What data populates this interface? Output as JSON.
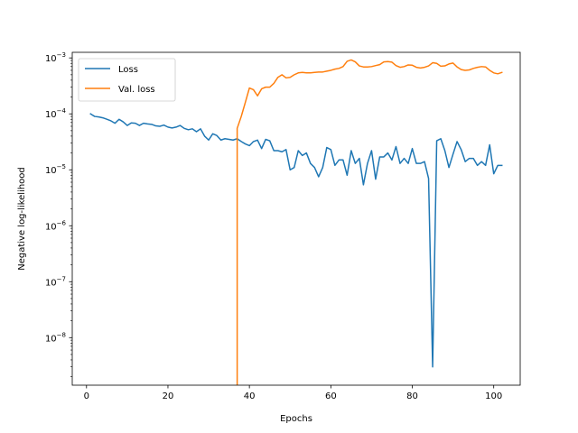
{
  "chart_data": {
    "type": "line",
    "title": "",
    "xlabel": "Epochs",
    "ylabel": "Negative log-likelihood",
    "xlim": [
      -3.5,
      106.5
    ],
    "ylim_log10": [
      -8.85,
      -2.9
    ],
    "yscale": "log",
    "grid": false,
    "legend_position": "top-left",
    "x_ticks": [
      0,
      20,
      40,
      60,
      80,
      100
    ],
    "x_tick_labels": [
      "0",
      "20",
      "40",
      "60",
      "80",
      "100"
    ],
    "y_ticks_log10": [
      -8,
      -7,
      -6,
      -5,
      -4,
      -3
    ],
    "y_tick_labels": [
      {
        "base": "10",
        "exp": "−8"
      },
      {
        "base": "10",
        "exp": "−7"
      },
      {
        "base": "10",
        "exp": "−6"
      },
      {
        "base": "10",
        "exp": "−5"
      },
      {
        "base": "10",
        "exp": "−4"
      },
      {
        "base": "10",
        "exp": "−3"
      }
    ],
    "series": [
      {
        "name": "Loss",
        "color": "#1f77b4",
        "x": [
          1,
          2,
          3,
          4,
          5,
          6,
          7,
          8,
          9,
          10,
          11,
          12,
          13,
          14,
          15,
          16,
          17,
          18,
          19,
          20,
          21,
          22,
          23,
          24,
          25,
          26,
          27,
          28,
          29,
          30,
          31,
          32,
          33,
          34,
          35,
          36,
          37,
          38,
          39,
          40,
          41,
          42,
          43,
          44,
          45,
          46,
          47,
          48,
          49,
          50,
          51,
          52,
          53,
          54,
          55,
          56,
          57,
          58,
          59,
          60,
          61,
          62,
          63,
          64,
          65,
          66,
          67,
          68,
          69,
          70,
          71,
          72,
          73,
          74,
          75,
          76,
          77,
          78,
          79,
          80,
          81,
          82,
          83,
          84,
          85,
          86,
          87,
          88,
          89,
          90,
          91,
          92,
          93,
          94,
          95,
          96,
          97,
          98,
          99,
          100,
          101,
          102
        ],
        "y": [
          0.0001,
          9e-05,
          8.8e-05,
          8.5e-05,
          8e-05,
          7.5e-05,
          6.8e-05,
          8e-05,
          7.2e-05,
          6.2e-05,
          6.9e-05,
          6.8e-05,
          6.2e-05,
          6.8e-05,
          6.6e-05,
          6.5e-05,
          6.1e-05,
          6e-05,
          6.3e-05,
          5.8e-05,
          5.6e-05,
          5.8e-05,
          6.2e-05,
          5.5e-05,
          5.2e-05,
          5.4e-05,
          4.8e-05,
          5.4e-05,
          4e-05,
          3.4e-05,
          4.4e-05,
          4.1e-05,
          3.4e-05,
          3.6e-05,
          3.5e-05,
          3.4e-05,
          3.6e-05,
          3.2e-05,
          2.9e-05,
          2.7e-05,
          3.2e-05,
          3.4e-05,
          2.4e-05,
          3.5e-05,
          3.3e-05,
          2.2e-05,
          2.2e-05,
          2.1e-05,
          2.3e-05,
          1e-05,
          1.1e-05,
          2.2e-05,
          1.8e-05,
          2e-05,
          1.3e-05,
          1.1e-05,
          7.5e-06,
          1.1e-05,
          2.5e-05,
          2.3e-05,
          1.2e-05,
          1.5e-05,
          1.5e-05,
          8e-06,
          2.2e-05,
          1.3e-05,
          1.6e-05,
          5.4e-06,
          1.3e-05,
          2.2e-05,
          6.8e-06,
          1.7e-05,
          1.7e-05,
          2e-05,
          1.5e-05,
          2.6e-05,
          1.3e-05,
          1.6e-05,
          1.3e-05,
          2.4e-05,
          1.3e-05,
          1.3e-05,
          1.4e-05,
          7e-06,
          3e-09,
          3.3e-05,
          3.6e-05,
          2.2e-05,
          1.1e-05,
          1.9e-05,
          3.2e-05,
          2.3e-05,
          1.4e-05,
          1.6e-05,
          1.6e-05,
          1.2e-05,
          1.4e-05,
          1.2e-05,
          2.8e-05,
          8.5e-06,
          1.2e-05,
          1.2e-05
        ]
      },
      {
        "name": "Val. loss",
        "color": "#ff7f0e",
        "x": [
          37,
          37,
          38,
          39,
          40,
          41,
          42,
          43,
          44,
          45,
          46,
          47,
          48,
          49,
          50,
          51,
          52,
          53,
          54,
          55,
          56,
          57,
          58,
          59,
          60,
          61,
          62,
          63,
          64,
          65,
          66,
          67,
          68,
          69,
          70,
          71,
          72,
          73,
          74,
          75,
          76,
          77,
          78,
          79,
          80,
          81,
          82,
          83,
          84,
          85,
          86,
          87,
          88,
          89,
          90,
          91,
          92,
          93,
          94,
          95,
          96,
          97,
          98,
          99,
          100,
          101,
          102
        ],
        "y": [
          1e-12,
          5.5e-05,
          9e-05,
          0.00016,
          0.00029,
          0.00027,
          0.00021,
          0.00028,
          0.0003,
          0.0003,
          0.00035,
          0.00045,
          0.0005,
          0.00044,
          0.00045,
          0.0005,
          0.00054,
          0.00055,
          0.00054,
          0.00054,
          0.00055,
          0.00056,
          0.00056,
          0.00058,
          0.0006,
          0.00063,
          0.00065,
          0.0007,
          0.00087,
          0.00092,
          0.00085,
          0.00072,
          0.00069,
          0.00069,
          0.0007,
          0.00073,
          0.00076,
          0.00085,
          0.00086,
          0.00084,
          0.00073,
          0.00068,
          0.0007,
          0.00075,
          0.00074,
          0.00068,
          0.00066,
          0.00068,
          0.00072,
          0.00082,
          0.0008,
          0.00071,
          0.00072,
          0.00078,
          0.00081,
          0.00069,
          0.00062,
          0.0006,
          0.00061,
          0.00065,
          0.00068,
          0.0007,
          0.00069,
          0.0006,
          0.00054,
          0.00052,
          0.00055
        ]
      }
    ]
  }
}
